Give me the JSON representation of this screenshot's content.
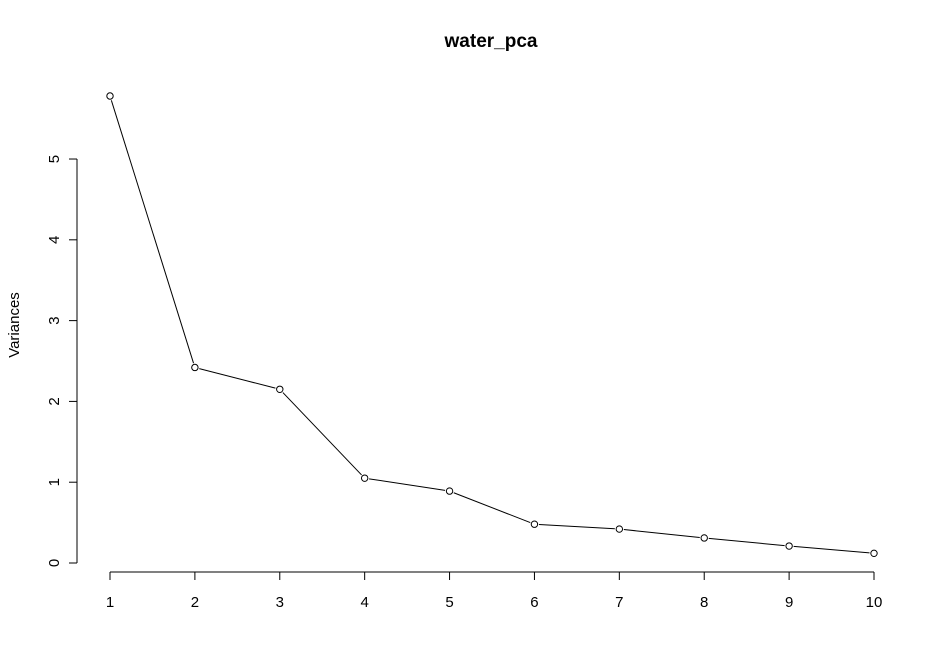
{
  "chart_data": {
    "type": "line",
    "title": "water_pca",
    "xlabel": "",
    "ylabel": "Variances",
    "x": [
      1,
      2,
      3,
      4,
      5,
      6,
      7,
      8,
      9,
      10
    ],
    "x_ticks": [
      "1",
      "2",
      "3",
      "4",
      "5",
      "6",
      "7",
      "8",
      "9",
      "10"
    ],
    "y_ticks": [
      "0",
      "1",
      "2",
      "3",
      "4",
      "5"
    ],
    "series": [
      {
        "values": [
          5.78,
          2.42,
          2.15,
          1.05,
          0.89,
          0.48,
          0.42,
          0.31,
          0.21,
          0.12
        ]
      }
    ],
    "xlim": [
      1,
      10
    ],
    "ylim": [
      0,
      5.78
    ],
    "grid": false,
    "legend": "none",
    "markers": "open-circle",
    "colors": {
      "line": "#000000",
      "marker_fill": "#ffffff",
      "marker_stroke": "#000000"
    }
  }
}
